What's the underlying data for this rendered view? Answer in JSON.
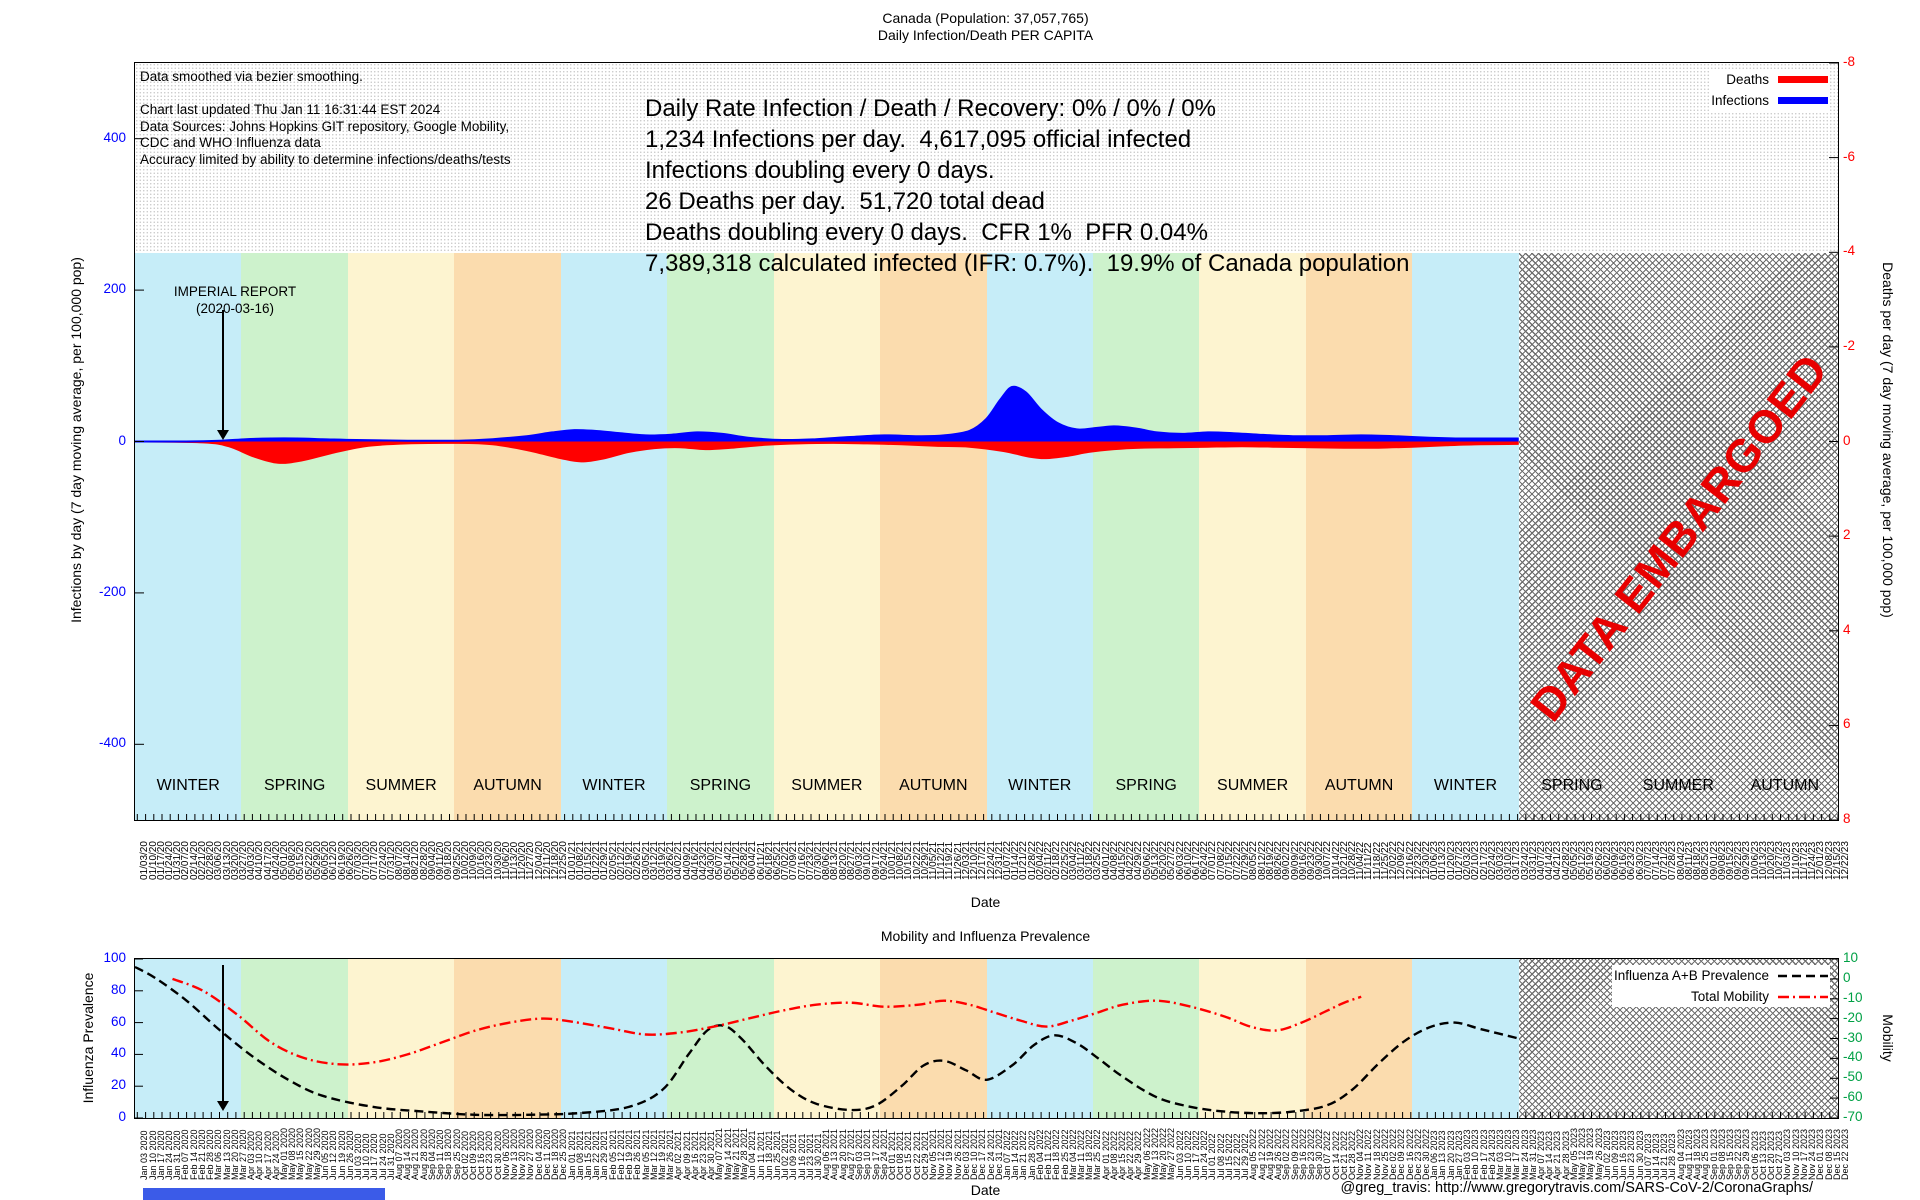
{
  "page": {
    "title_line1": "Canada (Population: 37,057,765)",
    "title_line2": "Daily Infection/Death PER CAPITA",
    "credit": "@greg_travis: http://www.gregorytravis.com/SARS-CoV-2/CoronaGraphs/"
  },
  "main_chart": {
    "notes": [
      "Data smoothed via bezier smoothing.",
      "",
      "Chart last updated Thu Jan 11 16:31:44 EST 2024",
      "Data Sources: Johns Hopkins GIT repository, Google Mobility,",
      "CDC and WHO Influenza data",
      "Accuracy limited by ability to determine infections/deaths/tests"
    ],
    "stats": [
      "Daily Rate Infection / Death / Recovery: 0% / 0% / 0%",
      "1,234 Infections per day.  4,617,095 official infected",
      "Infections doubling every 0 days.",
      "26 Deaths per day.  51,720 total dead",
      "Deaths doubling every 0 days.  CFR 1%  PFR 0.04%",
      "7,389,318 calculated infected (IFR: 0.7%).  19.9% of Canada population"
    ],
    "legend": [
      {
        "label": "Deaths",
        "color": "#ff0000"
      },
      {
        "label": "Infections",
        "color": "#0000ff"
      }
    ],
    "left_axis": {
      "label": "Infections by day (7 day moving average, per 100,000 pop)",
      "ticks": [
        400,
        200,
        0,
        -200,
        -400
      ],
      "color": "#0000ff",
      "range": [
        -500,
        500
      ]
    },
    "right_axis": {
      "label": "Deaths per day (7 day moving average, per 100,000 pop)",
      "ticks": [
        -8,
        -6,
        -4,
        -2,
        0,
        2,
        4,
        6,
        8
      ],
      "color": "#ff0000",
      "range": [
        -8,
        8
      ],
      "inverted": true
    },
    "x_label": "Date",
    "imperial_report": {
      "line1": "IMPERIAL REPORT",
      "line2": "(2020-03-16)",
      "date_fraction": 0.0517
    },
    "embargo_label": "DATA EMBARGOED",
    "embargo_from_season": 13,
    "seasons": [
      {
        "label": "WINTER",
        "color": "#c6edf8"
      },
      {
        "label": "SPRING",
        "color": "#cdf2cc"
      },
      {
        "label": "SUMMER",
        "color": "#fdf4d0"
      },
      {
        "label": "AUTUMN",
        "color": "#fbdcae"
      },
      {
        "label": "WINTER",
        "color": "#c6edf8"
      },
      {
        "label": "SPRING",
        "color": "#cdf2cc"
      },
      {
        "label": "SUMMER",
        "color": "#fdf4d0"
      },
      {
        "label": "AUTUMN",
        "color": "#fbdcae"
      },
      {
        "label": "WINTER",
        "color": "#c6edf8"
      },
      {
        "label": "SPRING",
        "color": "#cdf2cc"
      },
      {
        "label": "SUMMER",
        "color": "#fdf4d0"
      },
      {
        "label": "AUTUMN",
        "color": "#fbdcae"
      },
      {
        "label": "WINTER",
        "color": "#c6edf8"
      },
      {
        "label": "SPRING",
        "color": "#cdf2cc"
      },
      {
        "label": "SUMMER",
        "color": "#fdf4d0"
      },
      {
        "label": "AUTUMN",
        "color": "#fbdcae"
      }
    ]
  },
  "bottom_chart": {
    "title": "Mobility and Influenza Prevalence",
    "legend": [
      {
        "label": "Influenza A+B Prevalence",
        "color": "#000000",
        "dash": "9 5"
      },
      {
        "label": "Total Mobility",
        "color": "#ff0000",
        "dash": "11 4 2 4"
      }
    ],
    "left_axis": {
      "label": "Influenza Prevalence",
      "ticks": [
        100,
        80,
        60,
        40,
        20,
        0
      ],
      "color": "#0000ff",
      "range": [
        0,
        100
      ]
    },
    "right_axis": {
      "label": "Mobility",
      "ticks": [
        10,
        0,
        -10,
        -20,
        -30,
        -40,
        -50,
        -60,
        -70
      ],
      "color": "#00a045",
      "range": [
        -70,
        10
      ]
    },
    "x_label": "Date"
  },
  "chart_data": [
    {
      "type": "area",
      "title": "Daily Infection/Death PER CAPITA",
      "x_as_fraction_of_range": true,
      "x_axis": {
        "start_date": "2020-01-01",
        "end_date": "2023-12-22",
        "tick_start": "2020-01-03",
        "tick_interval_days": 7
      },
      "ylim_left": [
        -500,
        500
      ],
      "ylim_right_inverted": [
        -8,
        8
      ],
      "embargo_start_fraction": 0.8125,
      "series": [
        {
          "name": "Infections",
          "axis": "left",
          "color": "#0000ff",
          "unit": "per 100,000 pop, 7 day avg",
          "points": [
            [
              0,
              0
            ],
            [
              0.03,
              0
            ],
            [
              0.05,
              1
            ],
            [
              0.065,
              3
            ],
            [
              0.08,
              4
            ],
            [
              0.095,
              4
            ],
            [
              0.11,
              3
            ],
            [
              0.13,
              2
            ],
            [
              0.16,
              1
            ],
            [
              0.19,
              1
            ],
            [
              0.21,
              3
            ],
            [
              0.23,
              7
            ],
            [
              0.245,
              12
            ],
            [
              0.258,
              15
            ],
            [
              0.27,
              14
            ],
            [
              0.285,
              11
            ],
            [
              0.3,
              8
            ],
            [
              0.315,
              9
            ],
            [
              0.33,
              12
            ],
            [
              0.345,
              10
            ],
            [
              0.36,
              5
            ],
            [
              0.38,
              2
            ],
            [
              0.4,
              3
            ],
            [
              0.42,
              6
            ],
            [
              0.44,
              8
            ],
            [
              0.46,
              7
            ],
            [
              0.475,
              8
            ],
            [
              0.49,
              14
            ],
            [
              0.5,
              30
            ],
            [
              0.508,
              55
            ],
            [
              0.515,
              72
            ],
            [
              0.523,
              65
            ],
            [
              0.532,
              42
            ],
            [
              0.542,
              24
            ],
            [
              0.553,
              16
            ],
            [
              0.565,
              18
            ],
            [
              0.575,
              20
            ],
            [
              0.588,
              17
            ],
            [
              0.6,
              12
            ],
            [
              0.615,
              10
            ],
            [
              0.63,
              12
            ],
            [
              0.645,
              11
            ],
            [
              0.66,
              9
            ],
            [
              0.68,
              7
            ],
            [
              0.7,
              7
            ],
            [
              0.72,
              8
            ],
            [
              0.74,
              7
            ],
            [
              0.76,
              5
            ],
            [
              0.78,
              4
            ],
            [
              0.8,
              4
            ],
            [
              0.8125,
              4
            ]
          ]
        },
        {
          "name": "Deaths",
          "axis": "right",
          "color": "#ff0000",
          "unit": "per 100,000 pop, 7 day avg",
          "points": [
            [
              0,
              0
            ],
            [
              0.04,
              0.02
            ],
            [
              0.055,
              0.1
            ],
            [
              0.07,
              0.32
            ],
            [
              0.084,
              0.45
            ],
            [
              0.098,
              0.4
            ],
            [
              0.115,
              0.25
            ],
            [
              0.135,
              0.1
            ],
            [
              0.16,
              0.04
            ],
            [
              0.19,
              0.03
            ],
            [
              0.21,
              0.06
            ],
            [
              0.23,
              0.18
            ],
            [
              0.25,
              0.35
            ],
            [
              0.262,
              0.42
            ],
            [
              0.275,
              0.36
            ],
            [
              0.29,
              0.22
            ],
            [
              0.305,
              0.14
            ],
            [
              0.32,
              0.12
            ],
            [
              0.335,
              0.16
            ],
            [
              0.35,
              0.13
            ],
            [
              0.37,
              0.07
            ],
            [
              0.39,
              0.04
            ],
            [
              0.41,
              0.03
            ],
            [
              0.43,
              0.04
            ],
            [
              0.45,
              0.06
            ],
            [
              0.47,
              0.09
            ],
            [
              0.49,
              0.11
            ],
            [
              0.51,
              0.2
            ],
            [
              0.525,
              0.32
            ],
            [
              0.535,
              0.35
            ],
            [
              0.548,
              0.3
            ],
            [
              0.56,
              0.22
            ],
            [
              0.575,
              0.16
            ],
            [
              0.59,
              0.13
            ],
            [
              0.61,
              0.12
            ],
            [
              0.63,
              0.11
            ],
            [
              0.65,
              0.1
            ],
            [
              0.67,
              0.11
            ],
            [
              0.69,
              0.12
            ],
            [
              0.71,
              0.13
            ],
            [
              0.73,
              0.13
            ],
            [
              0.75,
              0.11
            ],
            [
              0.77,
              0.08
            ],
            [
              0.79,
              0.06
            ],
            [
              0.8125,
              0.05
            ]
          ]
        }
      ]
    },
    {
      "type": "line",
      "title": "Mobility and Influenza Prevalence",
      "x_as_fraction_of_range": true,
      "ylim_left": [
        0,
        100
      ],
      "ylim_right": [
        -70,
        10
      ],
      "embargo_start_fraction": 0.8125,
      "series": [
        {
          "name": "Influenza A+B Prevalence",
          "axis": "left",
          "color": "#000000",
          "points": [
            [
              0,
              95
            ],
            [
              0.012,
              88
            ],
            [
              0.03,
              74
            ],
            [
              0.05,
              55
            ],
            [
              0.07,
              38
            ],
            [
              0.09,
              24
            ],
            [
              0.11,
              14
            ],
            [
              0.14,
              7
            ],
            [
              0.17,
              4
            ],
            [
              0.2,
              2
            ],
            [
              0.23,
              2
            ],
            [
              0.26,
              3
            ],
            [
              0.29,
              7
            ],
            [
              0.31,
              18
            ],
            [
              0.325,
              40
            ],
            [
              0.336,
              55
            ],
            [
              0.346,
              58
            ],
            [
              0.356,
              50
            ],
            [
              0.37,
              33
            ],
            [
              0.385,
              18
            ],
            [
              0.4,
              9
            ],
            [
              0.42,
              5
            ],
            [
              0.435,
              8
            ],
            [
              0.45,
              20
            ],
            [
              0.463,
              33
            ],
            [
              0.475,
              36
            ],
            [
              0.488,
              30
            ],
            [
              0.5,
              24
            ],
            [
              0.515,
              33
            ],
            [
              0.528,
              46
            ],
            [
              0.54,
              52
            ],
            [
              0.553,
              47
            ],
            [
              0.565,
              38
            ],
            [
              0.58,
              26
            ],
            [
              0.6,
              13
            ],
            [
              0.62,
              7
            ],
            [
              0.64,
              4
            ],
            [
              0.66,
              3
            ],
            [
              0.68,
              4
            ],
            [
              0.7,
              8
            ],
            [
              0.715,
              18
            ],
            [
              0.73,
              34
            ],
            [
              0.745,
              48
            ],
            [
              0.76,
              57
            ],
            [
              0.775,
              60
            ],
            [
              0.79,
              56
            ],
            [
              0.8125,
              50
            ]
          ]
        },
        {
          "name": "Total Mobility",
          "axis": "right",
          "color": "#ff0000",
          "points": [
            [
              0.022,
              0
            ],
            [
              0.04,
              -6
            ],
            [
              0.06,
              -18
            ],
            [
              0.08,
              -32
            ],
            [
              0.1,
              -40
            ],
            [
              0.12,
              -43
            ],
            [
              0.14,
              -42
            ],
            [
              0.16,
              -38
            ],
            [
              0.18,
              -32
            ],
            [
              0.2,
              -26
            ],
            [
              0.22,
              -22
            ],
            [
              0.24,
              -20
            ],
            [
              0.26,
              -22
            ],
            [
              0.28,
              -25
            ],
            [
              0.3,
              -28
            ],
            [
              0.32,
              -27
            ],
            [
              0.34,
              -24
            ],
            [
              0.36,
              -20
            ],
            [
              0.38,
              -16
            ],
            [
              0.4,
              -13
            ],
            [
              0.42,
              -12
            ],
            [
              0.44,
              -14
            ],
            [
              0.46,
              -13
            ],
            [
              0.475,
              -11
            ],
            [
              0.49,
              -13
            ],
            [
              0.505,
              -17
            ],
            [
              0.52,
              -21
            ],
            [
              0.535,
              -24
            ],
            [
              0.55,
              -21
            ],
            [
              0.565,
              -17
            ],
            [
              0.58,
              -13
            ],
            [
              0.6,
              -11
            ],
            [
              0.62,
              -14
            ],
            [
              0.64,
              -19
            ],
            [
              0.655,
              -24
            ],
            [
              0.67,
              -26
            ],
            [
              0.685,
              -22
            ],
            [
              0.7,
              -16
            ],
            [
              0.71,
              -12
            ],
            [
              0.72,
              -9
            ]
          ]
        }
      ]
    }
  ]
}
